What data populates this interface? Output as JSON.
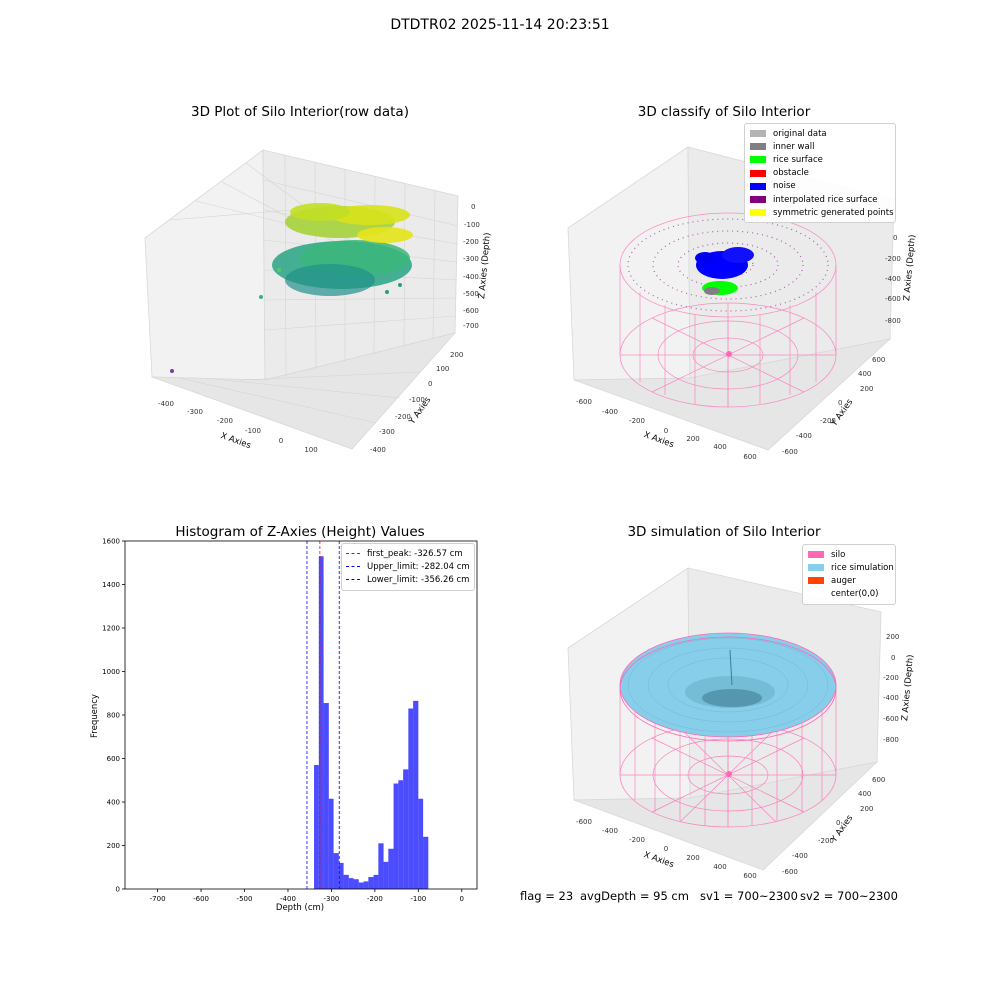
{
  "figure": {
    "suptitle": "DTDTR02 2025-11-14 20:23:51"
  },
  "panels": {
    "raw": {
      "title": "3D Plot of Silo Interior(row data)",
      "xlabel": "X Axies",
      "ylabel": "Y Axies",
      "zlabel": "Z Axies (Depth)",
      "x_ticks": [
        "-400",
        "-300",
        "-200",
        "-100",
        "0",
        "100"
      ],
      "y_ticks": [
        "-400",
        "-300",
        "-200",
        "-100",
        "0",
        "100",
        "200"
      ],
      "z_ticks": [
        "0",
        "-100",
        "-200",
        "-300",
        "-400",
        "-500",
        "-600",
        "-700"
      ]
    },
    "classify": {
      "title": "3D classify of Silo Interior",
      "xlabel": "X Axies",
      "ylabel": "Y Axies",
      "zlabel": "Z Axies (Depth)",
      "x_ticks": [
        "-600",
        "-400",
        "-200",
        "0",
        "200",
        "400",
        "600"
      ],
      "y_ticks": [
        "-600",
        "-400",
        "-200",
        "0",
        "200",
        "400",
        "600"
      ],
      "z_ticks": [
        "0",
        "-200",
        "-400",
        "-600",
        "-800"
      ],
      "legend": [
        {
          "label": "original data",
          "color": "#b3b3b3"
        },
        {
          "label": "inner wall",
          "color": "#808080"
        },
        {
          "label": "rice surface",
          "color": "#00ff00"
        },
        {
          "label": "obstacle",
          "color": "#ff0000"
        },
        {
          "label": "noise",
          "color": "#0000ff"
        },
        {
          "label": "interpolated rice surface",
          "color": "#800080"
        },
        {
          "label": "symmetric generated points",
          "color": "#ffff00"
        }
      ]
    },
    "histogram": {
      "title": "Histogram of Z-Axies (Height) Values",
      "xlabel": "Depth (cm)",
      "ylabel": "Frequency",
      "legend": [
        {
          "label": "first_peak: -326.57 cm",
          "color": "#ff0000"
        },
        {
          "label": "Upper_limit: -282.04 cm",
          "color": "#0000ff"
        },
        {
          "label": "Lower_limit: -356.26 cm",
          "color": "#0000ff"
        }
      ]
    },
    "simulation": {
      "title": "3D simulation of Silo Interior",
      "xlabel": "X Axies",
      "ylabel": "Y Axies",
      "zlabel": "Z Axies (Depth)",
      "x_ticks": [
        "-600",
        "-400",
        "-200",
        "0",
        "200",
        "400",
        "600"
      ],
      "y_ticks": [
        "-600",
        "-400",
        "-200",
        "0",
        "200",
        "400",
        "600"
      ],
      "z_ticks": [
        "200",
        "0",
        "-200",
        "-400",
        "-600",
        "-800"
      ],
      "legend": [
        {
          "label": "silo",
          "color": "#ff69b4"
        },
        {
          "label": "rice simulation",
          "color": "#87ceeb"
        },
        {
          "label": "auger",
          "color": "#ff4500"
        },
        {
          "label": "center(0,0)",
          "color": "#ffffff"
        }
      ]
    }
  },
  "footer": {
    "flag": "flag = 23",
    "avg_depth": "avgDepth = 95 cm",
    "sv1": "sv1 = 700~2300",
    "sv2": "sv2 = 700~2300"
  },
  "chart_data": {
    "type": "bar",
    "bar_color": "#0000ff",
    "bar_alpha": 0.7,
    "bins": [
      {
        "x0": -340,
        "x1": -329,
        "count": 570
      },
      {
        "x0": -329,
        "x1": -318,
        "count": 1530
      },
      {
        "x0": -318,
        "x1": -306,
        "count": 855
      },
      {
        "x0": -306,
        "x1": -295,
        "count": 415
      },
      {
        "x0": -295,
        "x1": -283,
        "count": 165
      },
      {
        "x0": -283,
        "x1": -272,
        "count": 120
      },
      {
        "x0": -272,
        "x1": -260,
        "count": 65
      },
      {
        "x0": -260,
        "x1": -249,
        "count": 50
      },
      {
        "x0": -249,
        "x1": -237,
        "count": 45
      },
      {
        "x0": -237,
        "x1": -226,
        "count": 30
      },
      {
        "x0": -226,
        "x1": -215,
        "count": 35
      },
      {
        "x0": -215,
        "x1": -203,
        "count": 55
      },
      {
        "x0": -203,
        "x1": -192,
        "count": 65
      },
      {
        "x0": -192,
        "x1": -180,
        "count": 210
      },
      {
        "x0": -180,
        "x1": -169,
        "count": 125
      },
      {
        "x0": -169,
        "x1": -157,
        "count": 185
      },
      {
        "x0": -157,
        "x1": -146,
        "count": 485
      },
      {
        "x0": -146,
        "x1": -135,
        "count": 500
      },
      {
        "x0": -135,
        "x1": -123,
        "count": 550
      },
      {
        "x0": -123,
        "x1": -112,
        "count": 830
      },
      {
        "x0": -112,
        "x1": -100,
        "count": 865
      },
      {
        "x0": -100,
        "x1": -89,
        "count": 415
      },
      {
        "x0": -89,
        "x1": -77,
        "count": 240
      }
    ],
    "vlines": [
      {
        "x": -326.57,
        "color": "#ff0000"
      },
      {
        "x": -282.04,
        "color": "#0000ff"
      },
      {
        "x": -356.26,
        "color": "#0000ff"
      }
    ],
    "xlim": [
      -775,
      35
    ],
    "ylim": [
      0,
      1600
    ],
    "x_ticks": [
      -700,
      -600,
      -500,
      -400,
      -300,
      -200,
      -100,
      0
    ],
    "y_ticks": [
      0,
      200,
      400,
      600,
      800,
      1000,
      1200,
      1400,
      1600
    ],
    "legend_position": "top-right",
    "grid": false
  }
}
